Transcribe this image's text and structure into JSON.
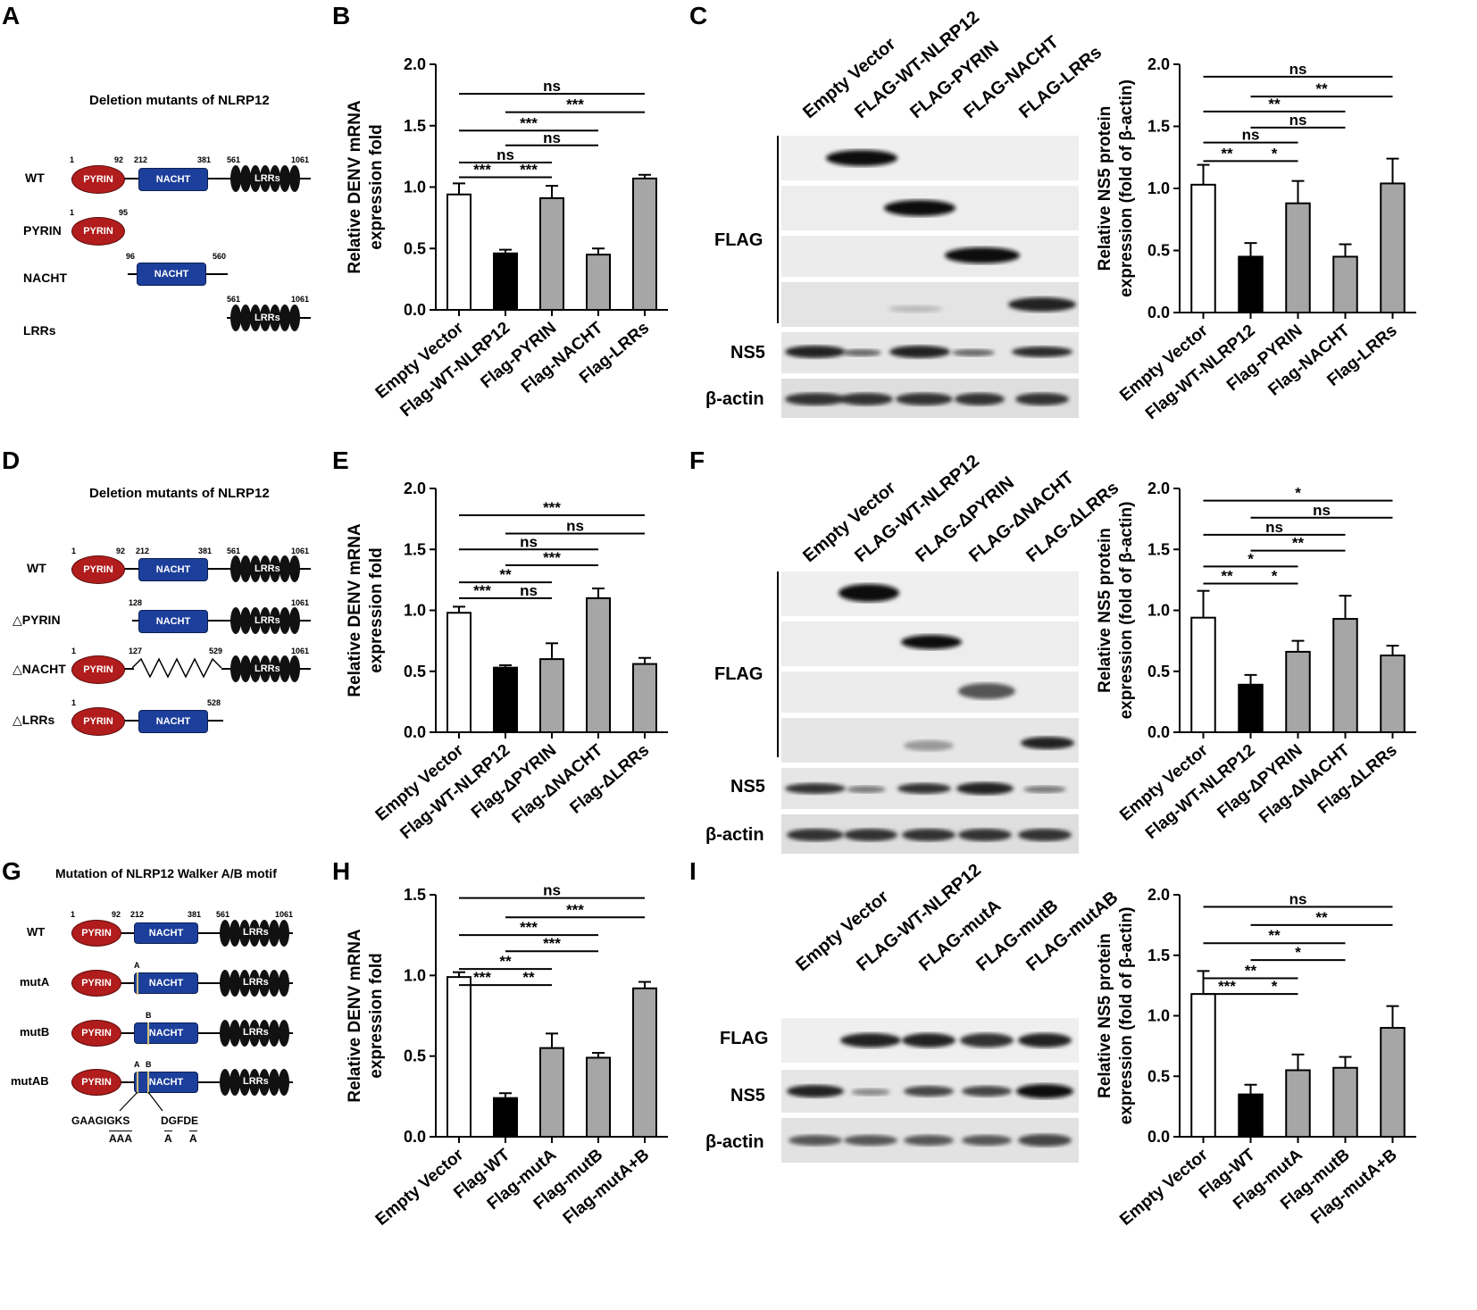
{
  "panels": {
    "A": "A",
    "B": "B",
    "C": "C",
    "D": "D",
    "E": "E",
    "F": "F",
    "G": "G",
    "H": "H",
    "I": "I"
  },
  "diagram_A": {
    "title": "Deletion mutants of NLRP12",
    "rows": [
      {
        "label": "WT",
        "nums": [
          "1",
          "92",
          "212",
          "381",
          "561",
          "1061"
        ]
      },
      {
        "label": "PYRIN",
        "nums": [
          "1",
          "95"
        ]
      },
      {
        "label": "NACHT",
        "nums": [
          "96",
          "560"
        ]
      },
      {
        "label": "LRRs",
        "nums": [
          "561",
          "1061"
        ]
      }
    ]
  },
  "diagram_D": {
    "title": "Deletion mutants of NLRP12",
    "rows": [
      {
        "label": "WT",
        "nums": [
          "1",
          "92",
          "212",
          "381",
          "561",
          "1061"
        ]
      },
      {
        "label": "△PYRIN",
        "nums": [
          "128",
          "1061"
        ]
      },
      {
        "label": "△NACHT",
        "nums": [
          "1",
          "127",
          "529",
          "1061"
        ]
      },
      {
        "label": "△LRRs",
        "nums": [
          "1",
          "528"
        ]
      }
    ]
  },
  "diagram_G": {
    "title": "Mutation of NLRP12 Walker A/B motif",
    "rows": [
      {
        "label": "WT",
        "nums": [
          "1",
          "92",
          "212",
          "381",
          "561",
          "1061"
        ]
      },
      {
        "label": "mutA",
        "nums": [
          "A"
        ]
      },
      {
        "label": "mutB",
        "nums": [
          "B"
        ]
      },
      {
        "label": "mutAB",
        "nums": [
          "A",
          "B"
        ]
      }
    ],
    "motif_a_wt": "GAAGIGKS",
    "motif_a_mut": "AAA",
    "motif_b_wt": "DGFDE",
    "motif_b_mut1": "A",
    "motif_b_mut2": "A"
  },
  "domains": {
    "pyrin": "PYRIN",
    "nacht": "NACHT",
    "lrrs": "LRRs"
  },
  "blot_C": {
    "lanes": [
      "Empty Vector",
      "FLAG-WT-NLRP12",
      "FLAG-PYRIN",
      "FLAG-NACHT",
      "FLAG-LRRs"
    ],
    "rows": [
      "FLAG",
      "NS5",
      "β-actin"
    ]
  },
  "blot_F": {
    "lanes": [
      "Empty Vector",
      "FLAG-WT-NLRP12",
      "FLAG-ΔPYRIN",
      "FLAG-ΔNACHT",
      "FLAG-ΔLRRs"
    ],
    "rows": [
      "FLAG",
      "NS5",
      "β-actin"
    ]
  },
  "blot_I": {
    "lanes": [
      "Empty Vector",
      "FLAG-WT-NLRP12",
      "FLAG-mutA",
      "FLAG-mutB",
      "FLAG-mutAB"
    ],
    "rows": [
      "FLAG",
      "NS5",
      "β-actin"
    ]
  },
  "chart_data": [
    {
      "id": "B",
      "type": "bar",
      "ylabel": [
        "Relative DENV mRNA",
        "expression fold"
      ],
      "ylim": [
        0,
        2.0
      ],
      "yticks": [
        "0.0",
        "0.5",
        "1.0",
        "1.5",
        "2.0"
      ],
      "categories": [
        "Empty Vector",
        "Flag-WT-NLRP12",
        "Flag-PYRIN",
        "Flag-NACHT",
        "Flag-LRRs"
      ],
      "values": [
        0.94,
        0.46,
        0.91,
        0.45,
        1.07
      ],
      "errors": [
        0.09,
        0.03,
        0.1,
        0.05,
        0.03
      ],
      "fills": [
        "#ffffff",
        "#000000",
        "#a6a6a6",
        "#a6a6a6",
        "#a6a6a6"
      ],
      "sig": [
        {
          "a": 0,
          "b": 4,
          "y": 1.76,
          "t": "ns"
        },
        {
          "a": 1,
          "b": 4,
          "y": 1.61,
          "t": "***"
        },
        {
          "a": 0,
          "b": 3,
          "y": 1.46,
          "t": "***"
        },
        {
          "a": 1,
          "b": 3,
          "y": 1.34,
          "t": "ns"
        },
        {
          "a": 0,
          "b": 2,
          "y": 1.2,
          "t": "ns"
        },
        {
          "a": 0,
          "b": 1,
          "y": 1.08,
          "t": "***"
        },
        {
          "a": 1,
          "b": 2,
          "y": 1.08,
          "t": "***"
        }
      ]
    },
    {
      "id": "C",
      "type": "bar",
      "ylabel": [
        "Relative NS5 protein",
        "expression (fold of β-actin)"
      ],
      "ylim": [
        0,
        2.0
      ],
      "yticks": [
        "0.0",
        "0.5",
        "1.0",
        "1.5",
        "2.0"
      ],
      "categories": [
        "Empty Vector",
        "Flag-WT-NLRP12",
        "Flag-PYRIN",
        "Flag-NACHT",
        "Flag-LRRs"
      ],
      "values": [
        1.03,
        0.45,
        0.88,
        0.45,
        1.04
      ],
      "errors": [
        0.16,
        0.11,
        0.18,
        0.1,
        0.2
      ],
      "fills": [
        "#ffffff",
        "#000000",
        "#a6a6a6",
        "#a6a6a6",
        "#a6a6a6"
      ],
      "sig": [
        {
          "a": 0,
          "b": 4,
          "y": 1.9,
          "t": "ns"
        },
        {
          "a": 1,
          "b": 4,
          "y": 1.74,
          "t": "**"
        },
        {
          "a": 0,
          "b": 3,
          "y": 1.62,
          "t": "**"
        },
        {
          "a": 1,
          "b": 3,
          "y": 1.49,
          "t": "ns"
        },
        {
          "a": 0,
          "b": 2,
          "y": 1.37,
          "t": "ns"
        },
        {
          "a": 0,
          "b": 1,
          "y": 1.22,
          "t": "**"
        },
        {
          "a": 1,
          "b": 2,
          "y": 1.22,
          "t": "*"
        }
      ]
    },
    {
      "id": "E",
      "type": "bar",
      "ylabel": [
        "Relative DENV mRNA",
        "expression fold"
      ],
      "ylim": [
        0,
        2.0
      ],
      "yticks": [
        "0.0",
        "0.5",
        "1.0",
        "1.5",
        "2.0"
      ],
      "categories": [
        "Empty Vector",
        "Flag-WT-NLRP12",
        "Flag-ΔPYRIN",
        "Flag-ΔNACHT",
        "Flag-ΔLRRs"
      ],
      "values": [
        0.98,
        0.53,
        0.6,
        1.1,
        0.56
      ],
      "errors": [
        0.05,
        0.02,
        0.13,
        0.08,
        0.05
      ],
      "fills": [
        "#ffffff",
        "#000000",
        "#a6a6a6",
        "#a6a6a6",
        "#a6a6a6"
      ],
      "sig": [
        {
          "a": 0,
          "b": 4,
          "y": 1.78,
          "t": "***"
        },
        {
          "a": 1,
          "b": 4,
          "y": 1.63,
          "t": "ns"
        },
        {
          "a": 0,
          "b": 3,
          "y": 1.5,
          "t": "ns"
        },
        {
          "a": 1,
          "b": 3,
          "y": 1.37,
          "t": "***"
        },
        {
          "a": 0,
          "b": 2,
          "y": 1.23,
          "t": "**"
        },
        {
          "a": 0,
          "b": 1,
          "y": 1.1,
          "t": "***"
        },
        {
          "a": 1,
          "b": 2,
          "y": 1.1,
          "t": "ns"
        }
      ]
    },
    {
      "id": "F",
      "type": "bar",
      "ylabel": [
        "Relative NS5 protein",
        "expression (fold of β-actin)"
      ],
      "ylim": [
        0,
        2.0
      ],
      "yticks": [
        "0.0",
        "0.5",
        "1.0",
        "1.5",
        "2.0"
      ],
      "categories": [
        "Empty Vector",
        "Flag-WT-NLRP12",
        "Flag-ΔPYRIN",
        "Flag-ΔNACHT",
        "Flag-ΔLRRs"
      ],
      "values": [
        0.94,
        0.39,
        0.66,
        0.93,
        0.63
      ],
      "errors": [
        0.22,
        0.08,
        0.09,
        0.19,
        0.08
      ],
      "fills": [
        "#ffffff",
        "#000000",
        "#a6a6a6",
        "#a6a6a6",
        "#a6a6a6"
      ],
      "sig": [
        {
          "a": 0,
          "b": 4,
          "y": 1.9,
          "t": "*"
        },
        {
          "a": 1,
          "b": 4,
          "y": 1.76,
          "t": "ns"
        },
        {
          "a": 0,
          "b": 3,
          "y": 1.62,
          "t": "ns"
        },
        {
          "a": 1,
          "b": 3,
          "y": 1.49,
          "t": "**"
        },
        {
          "a": 0,
          "b": 2,
          "y": 1.36,
          "t": "*"
        },
        {
          "a": 0,
          "b": 1,
          "y": 1.22,
          "t": "**"
        },
        {
          "a": 1,
          "b": 2,
          "y": 1.22,
          "t": "*"
        }
      ]
    },
    {
      "id": "H",
      "type": "bar",
      "ylabel": [
        "Relative DENV mRNA",
        "expression fold"
      ],
      "ylim": [
        0,
        1.5
      ],
      "yticks": [
        "0.0",
        "0.5",
        "1.0",
        "1.5"
      ],
      "categories": [
        "Empty Vector",
        "Flag-WT",
        "Flag-mutA",
        "Flag-mutB",
        "Flag-mutA+B"
      ],
      "values": [
        0.99,
        0.24,
        0.55,
        0.49,
        0.92
      ],
      "errors": [
        0.03,
        0.03,
        0.09,
        0.03,
        0.04
      ],
      "fills": [
        "#ffffff",
        "#000000",
        "#a6a6a6",
        "#a6a6a6",
        "#a6a6a6"
      ],
      "sig": [
        {
          "a": 0,
          "b": 4,
          "y": 1.48,
          "t": "ns"
        },
        {
          "a": 1,
          "b": 4,
          "y": 1.36,
          "t": "***"
        },
        {
          "a": 0,
          "b": 3,
          "y": 1.25,
          "t": "***"
        },
        {
          "a": 1,
          "b": 3,
          "y": 1.15,
          "t": "***"
        },
        {
          "a": 0,
          "b": 2,
          "y": 1.04,
          "t": "**"
        },
        {
          "a": 0,
          "b": 1,
          "y": 0.94,
          "t": "***"
        },
        {
          "a": 1,
          "b": 2,
          "y": 0.94,
          "t": "**"
        }
      ]
    },
    {
      "id": "I",
      "type": "bar",
      "ylabel": [
        "Relative NS5 protein",
        "expression (fold of β-actin)"
      ],
      "ylim": [
        0,
        2.0
      ],
      "yticks": [
        "0.0",
        "0.5",
        "1.0",
        "1.5",
        "2.0"
      ],
      "categories": [
        "Empty Vector",
        "Flag-WT",
        "Flag-mutA",
        "Flag-mutB",
        "Flag-mutA+B"
      ],
      "values": [
        1.18,
        0.35,
        0.55,
        0.57,
        0.9
      ],
      "errors": [
        0.19,
        0.08,
        0.13,
        0.09,
        0.18
      ],
      "fills": [
        "#ffffff",
        "#000000",
        "#a6a6a6",
        "#a6a6a6",
        "#a6a6a6"
      ],
      "sig": [
        {
          "a": 0,
          "b": 4,
          "y": 1.9,
          "t": "ns"
        },
        {
          "a": 1,
          "b": 4,
          "y": 1.75,
          "t": "**"
        },
        {
          "a": 0,
          "b": 3,
          "y": 1.6,
          "t": "**"
        },
        {
          "a": 1,
          "b": 3,
          "y": 1.46,
          "t": "*"
        },
        {
          "a": 0,
          "b": 2,
          "y": 1.31,
          "t": "**"
        },
        {
          "a": 0,
          "b": 1,
          "y": 1.18,
          "t": "***"
        },
        {
          "a": 1,
          "b": 2,
          "y": 1.18,
          "t": "*"
        }
      ]
    }
  ]
}
